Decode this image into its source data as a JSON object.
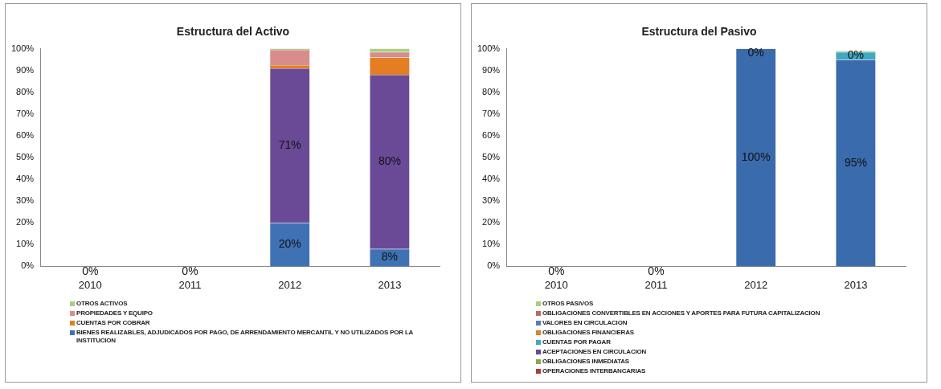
{
  "chart_data": [
    {
      "type": "bar",
      "title": "Estructura del Activo",
      "stacked": true,
      "legend": "bottom",
      "categories": [
        "2010",
        "2011",
        "2012",
        "2013"
      ],
      "ylim": [
        0,
        100
      ],
      "yticks": [
        {
          "value": 0,
          "label": "0%"
        },
        {
          "value": 10,
          "label": "10%"
        },
        {
          "value": 20,
          "label": "20%"
        },
        {
          "value": 30,
          "label": "30%"
        },
        {
          "value": 40,
          "label": "40%"
        },
        {
          "value": 50,
          "label": "50%"
        },
        {
          "value": 60,
          "label": "60%"
        },
        {
          "value": 70,
          "label": "70%"
        },
        {
          "value": 80,
          "label": "80%"
        },
        {
          "value": 90,
          "label": "90%"
        },
        {
          "value": 100,
          "label": "100%"
        }
      ],
      "series": [
        {
          "name": "BIENES REALIZABLES, ADJUDICADOS POR PAGO, DE ARRENDAMIENTO MERCANTIL Y NO UTILIZADOS POR LA INSTITUCION",
          "color": "#3f72b5",
          "values": [
            0,
            0,
            20,
            8
          ],
          "value_labels": [
            "0%",
            "0%",
            "20%",
            "8%"
          ]
        },
        {
          "color": "#6a4a96",
          "values": [
            0,
            0,
            71,
            80
          ],
          "value_labels": [
            null,
            null,
            "71%",
            "80%"
          ]
        },
        {
          "name": "CUENTAS POR COBRAR",
          "color": "#e57e22",
          "values": [
            0,
            0,
            1.5,
            8
          ]
        },
        {
          "name": "PROPIEDADES Y EQUIPO",
          "color": "#d98c8c",
          "values": [
            0,
            0,
            7,
            2.5
          ]
        },
        {
          "name": "OTROS ACTIVOS",
          "color": "#a9cf7a",
          "values": [
            0,
            0,
            0.5,
            1.5
          ]
        }
      ]
    },
    {
      "type": "bar",
      "title": "Estructura del Pasivo",
      "stacked": true,
      "legend": "bottom",
      "categories": [
        "2010",
        "2011",
        "2012",
        "2013"
      ],
      "ylim": [
        0,
        100
      ],
      "yticks": [
        {
          "value": 0,
          "label": "0%"
        },
        {
          "value": 10,
          "label": "10%"
        },
        {
          "value": 20,
          "label": "20%"
        },
        {
          "value": 30,
          "label": "30%"
        },
        {
          "value": 40,
          "label": "40%"
        },
        {
          "value": 50,
          "label": "50%"
        },
        {
          "value": 60,
          "label": "60%"
        },
        {
          "value": 70,
          "label": "70%"
        },
        {
          "value": 80,
          "label": "80%"
        },
        {
          "value": 90,
          "label": "90%"
        },
        {
          "value": 100,
          "label": "100%"
        }
      ],
      "series": [
        {
          "color": "#3a6bad",
          "values": [
            0,
            0,
            100,
            95
          ],
          "value_labels": [
            "0%",
            "0%",
            "100%",
            "95%"
          ]
        },
        {
          "name": "OPERACIONES INTERBANCARIAS",
          "color": "#b03a37",
          "values": [
            0,
            0,
            0,
            0
          ]
        },
        {
          "name": "OBLIGACIONES INMEDIATAS",
          "color": "#86a84a",
          "values": [
            0,
            0,
            0,
            0
          ]
        },
        {
          "name": "ACEPTACIONES EN CIRCULACION",
          "color": "#6a4a96",
          "values": [
            0,
            0,
            0,
            0
          ]
        },
        {
          "name": "CUENTAS POR PAGAR",
          "color": "#3fa9c4",
          "values": [
            0,
            0,
            0,
            3.5
          ]
        },
        {
          "name": "OBLIGACIONES FINANCIERAS",
          "color": "#e57e22",
          "values": [
            0,
            0,
            0,
            0
          ]
        },
        {
          "name": "VALORES EN CIRCULACION",
          "color": "#5b7db0",
          "values": [
            0,
            0,
            0,
            0
          ]
        },
        {
          "name": "OBLIGACIONES CONVERTIBLES EN ACCIONES Y APORTES PARA FUTURA CAPITALIZACION",
          "color": "#b86a6a",
          "values": [
            0,
            0,
            0,
            0
          ]
        },
        {
          "name": "OTROS PASIVOS",
          "color": "#a9cf7a",
          "values": [
            0,
            0,
            0,
            0.5
          ],
          "value_labels": [
            null,
            null,
            "0%",
            "0%"
          ]
        }
      ]
    }
  ]
}
